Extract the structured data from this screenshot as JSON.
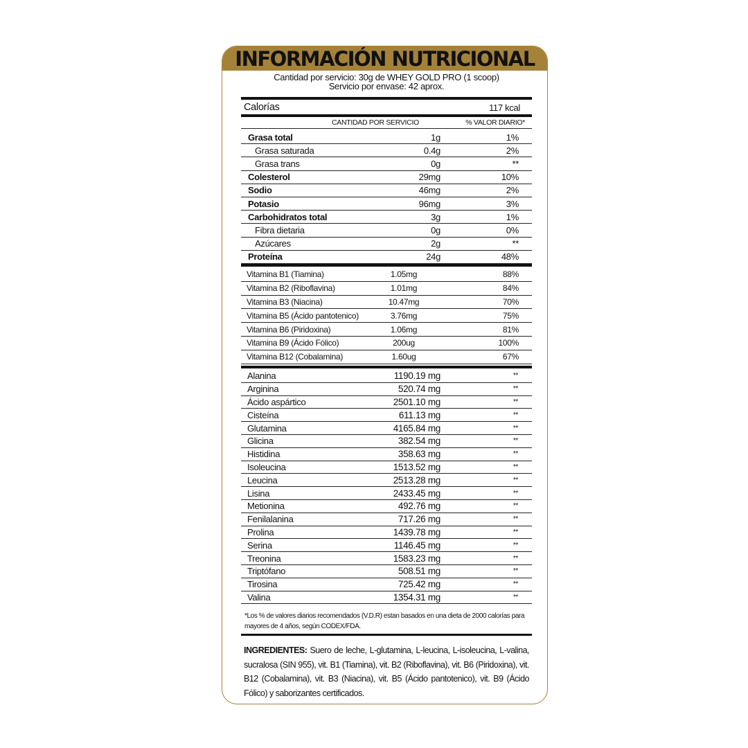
{
  "header": {
    "title": "INFORMACIÓN NUTRICIONAL"
  },
  "serving": {
    "line1": "Cantidad por servicio: 30g de  WHEY GOLD PRO (1 scoop)",
    "line2": "Servicio por envase: 42 aprox."
  },
  "calories": {
    "label": "Calorías",
    "value": "117 kcal"
  },
  "columns": [
    "CANTIDAD POR SERVICIO",
    "% VALOR DIARIO*"
  ],
  "nutrients": [
    {
      "name": "Grasa total",
      "amount": "1g",
      "dv": "1%",
      "bold": true
    },
    {
      "name": "Grasa saturada",
      "amount": "0.4g",
      "dv": "2%",
      "bold": false
    },
    {
      "name": "Grasa trans",
      "amount": "0g",
      "dv": "**",
      "bold": false
    },
    {
      "name": "Colesterol",
      "amount": "29mg",
      "dv": "10%",
      "bold": true
    },
    {
      "name": "Sodio",
      "amount": "46mg",
      "dv": "2%",
      "bold": true
    },
    {
      "name": "Potasio",
      "amount": "96mg",
      "dv": "3%",
      "bold": true
    },
    {
      "name": "Carbohidratos total",
      "amount": "3g",
      "dv": "1%",
      "bold": true
    },
    {
      "name": "Fibra dietaria",
      "amount": "0g",
      "dv": "0%",
      "bold": false
    },
    {
      "name": "Azúcares",
      "amount": "2g",
      "dv": "**",
      "bold": false
    },
    {
      "name": "Proteína",
      "amount": "24g",
      "dv": "48%",
      "bold": true
    }
  ],
  "vitamins": [
    {
      "name": "Vitamina B1 (Tiamina)",
      "amount": "1.05mg",
      "dv": "88%"
    },
    {
      "name": "Vitamina B2 (Riboflavina)",
      "amount": "1.01mg",
      "dv": "84%"
    },
    {
      "name": "Vitamina B3 (Niacina)",
      "amount": "10.47mg",
      "dv": "70%"
    },
    {
      "name": "Vitamina B5 (Ácido pantotenico)",
      "amount": "3.76mg",
      "dv": "75%"
    },
    {
      "name": "Vitamina B6 (Piridoxina)",
      "amount": "1.06mg",
      "dv": "81%"
    },
    {
      "name": "Vitamina B9 (Ácido Fólico)",
      "amount": "200ug",
      "dv": "100%"
    },
    {
      "name": "Vitamina B12 (Cobalamina)",
      "amount": "1.60ug",
      "dv": "67%"
    }
  ],
  "amino_acids": [
    {
      "name": "Alanina",
      "amount": "1190.19 mg",
      "dv": "**"
    },
    {
      "name": "Arginina",
      "amount": "520.74 mg",
      "dv": "**"
    },
    {
      "name": "Ácido aspártico",
      "amount": "2501.10 mg",
      "dv": "**"
    },
    {
      "name": "Cisteína",
      "amount": "611.13 mg",
      "dv": "**"
    },
    {
      "name": "Glutamina",
      "amount": "4165.84 mg",
      "dv": "**"
    },
    {
      "name": "Glicina",
      "amount": "382.54 mg",
      "dv": "**"
    },
    {
      "name": "Histidina",
      "amount": "358.63 mg",
      "dv": "**"
    },
    {
      "name": "Isoleucina",
      "amount": "1513.52 mg",
      "dv": "**"
    },
    {
      "name": "Leucina",
      "amount": "2513.28 mg",
      "dv": "**"
    },
    {
      "name": "Lisina",
      "amount": "2433.45 mg",
      "dv": "**"
    },
    {
      "name": "Metionina",
      "amount": "492.76 mg",
      "dv": "**"
    },
    {
      "name": "Fenilalanina",
      "amount": "717.26 mg",
      "dv": "**"
    },
    {
      "name": "Prolina",
      "amount": "1439.78 mg",
      "dv": "**"
    },
    {
      "name": "Serina",
      "amount": "1146.45 mg",
      "dv": "**"
    },
    {
      "name": "Treonina",
      "amount": "1583.23 mg",
      "dv": "**"
    },
    {
      "name": "Triptófano",
      "amount": "508.51 mg",
      "dv": "**"
    },
    {
      "name": "Tirosina",
      "amount": "725.42 mg",
      "dv": "**"
    },
    {
      "name": "Valina",
      "amount": "1354.31 mg",
      "dv": "**"
    }
  ],
  "footnote": "*Los % de valores diarios recomendados (V.D.R) estan basados en una dieta de 2000 calorías para mayores de 4 años, según CODEX/FDA.",
  "ingredients": {
    "label": "INGREDIENTES:",
    "text": " Suero de leche, L-glutamina, L-leucina, L-isoleucina, L-valina, sucralosa (SIN 955), vit. B1 (Tiamina), vit. B2 (Riboflavina), vit. B6 (Piridoxina), vit. B12 (Cobalamina), vit. B3 (Niacina), vit. B5 (Ácido pantotenico), vit. B9 (Ácido Fólico) y saborizantes certificados."
  }
}
